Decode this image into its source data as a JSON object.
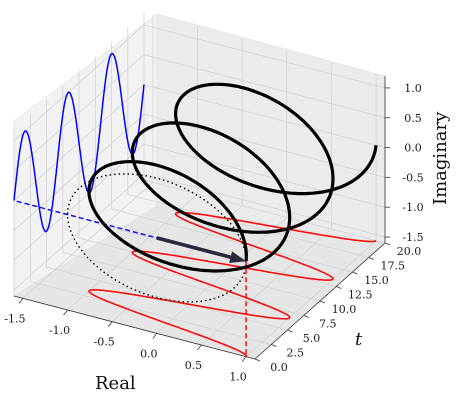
{
  "chart_data": {
    "type": "line",
    "projection": "3d",
    "xlabel": "Real",
    "ylabel": "t",
    "zlabel": "Imaginary",
    "xlim": [
      -1.6,
      1.1
    ],
    "ylim": [
      0,
      20
    ],
    "zlim": [
      -1.6,
      1.2
    ],
    "x_ticks": [
      "-1.5",
      "-1.0",
      "-0.5",
      "0.0",
      "0.5",
      "1.0"
    ],
    "y_ticks": [
      "0.0",
      "2.5",
      "5.0",
      "7.5",
      "10.0",
      "12.5",
      "15.0",
      "17.5",
      "20.0"
    ],
    "z_ticks": [
      "1.0",
      "0.5",
      "0.0",
      "-0.5",
      "-1.0",
      "-1.5"
    ],
    "grid": true,
    "series": [
      {
        "kind": "helix",
        "color": "#000000",
        "radius": 1.0,
        "turns": 3,
        "t_range": [
          0,
          20
        ]
      },
      {
        "kind": "projection-real",
        "color": "#ff0000",
        "plane": "z=-1.6"
      },
      {
        "kind": "projection-imaginary",
        "color": "#0000ff",
        "plane": "x=-1.6"
      },
      {
        "kind": "unit-circle",
        "color": "#000000",
        "style": "dotted",
        "at_t": 0
      },
      {
        "kind": "phasor-arrow",
        "color": "#2a2a3a",
        "at_t": 0,
        "value": [
          1,
          0
        ]
      },
      {
        "kind": "guide",
        "color": "#0000ff",
        "style": "dashed",
        "to": "x=-1.6"
      },
      {
        "kind": "guide",
        "color": "#ff0000",
        "style": "dashed",
        "to": "z=-1.6"
      }
    ]
  }
}
